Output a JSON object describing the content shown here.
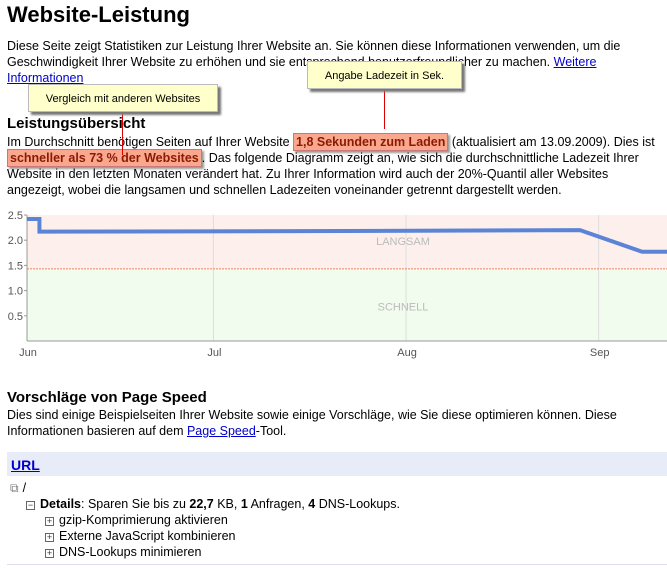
{
  "title": "Website-Leistung",
  "intro": {
    "text": "Diese Seite zeigt Statistiken zur Leistung Ihrer Website an. Sie können diese Informationen verwenden, um die Geschwindigkeit Ihrer Website zu erhöhen und sie entsprechend benutzerfreundlicher zu machen. ",
    "link": "Weitere Informationen"
  },
  "callouts": {
    "compare": "Vergleich mit anderen Websites",
    "loadtime": "Angabe Ladezeit in Sek."
  },
  "overview": {
    "heading": "Leistungsübersicht",
    "t1": "Im Durchschnitt benötigen Seiten auf Ihrer Website ",
    "hl1": "1,8 Sekunden zum Laden",
    "t2": " (aktualisiert am 13.09.2009). Dies ist ",
    "hl2": "schneller als 73 % der Websites",
    "t3": ". Das folgende Diagramm zeigt an, wie sich die durchschnittliche Ladezeit Ihrer Website in den letzten Monaten verändert hat. Zu Ihrer Information wird auch der 20%-Quantil aller Websites angezeigt, wobei die langsamen und schnellen Ladezeiten voneinander getrennt dargestellt werden."
  },
  "chart_data": {
    "type": "line",
    "x_range": [
      "2009-06-01",
      "2009-09-12"
    ],
    "ylim": [
      0,
      2.5
    ],
    "yticks": [
      "0.5",
      "1.0",
      "1.5",
      "2.0",
      "2.5"
    ],
    "xticks": [
      {
        "label": "Jun",
        "date": "2009-06-01"
      },
      {
        "label": "Jul",
        "date": "2009-07-01"
      },
      {
        "label": "Aug",
        "date": "2009-08-01"
      },
      {
        "label": "Sep",
        "date": "2009-09-01"
      }
    ],
    "threshold": 1.43,
    "region_labels": {
      "slow": "LANGSAM",
      "fast": "SCHNELL"
    },
    "colors": {
      "line": "#5b84d6",
      "slow": "#fdf0ec",
      "fast": "#f2fcee",
      "threshold": "#f08060"
    },
    "grid": true,
    "series": [
      {
        "points": [
          [
            "2009-06-01",
            2.42
          ],
          [
            "2009-06-03",
            2.42
          ],
          [
            "2009-06-03",
            2.17
          ],
          [
            "2009-07-15",
            2.18
          ],
          [
            "2009-08-29",
            2.2
          ],
          [
            "2009-09-08",
            1.77
          ],
          [
            "2009-09-12",
            1.77
          ]
        ]
      }
    ]
  },
  "pagespeed": {
    "heading": "Vorschläge von Page Speed",
    "t1": "Dies sind einige Beispielseiten Ihrer Website sowie einige Vorschläge, wie Sie diese optimieren können. Diese Informationen basieren auf dem ",
    "link": "Page Speed",
    "t2": "-Tool."
  },
  "table": {
    "header": "URL",
    "url": "/",
    "details_label": "Details",
    "details": {
      "t1": ": Sparen Sie bis zu ",
      "kb": "22,7",
      "t2": " KB, ",
      "req": "1",
      "t3": " Anfragen, ",
      "dns": "4",
      "t4": " DNS-Lookups."
    },
    "items": [
      "gzip-Komprimierung aktivieren",
      "Externe JavaScript kombinieren",
      "DNS-Lookups minimieren"
    ]
  }
}
